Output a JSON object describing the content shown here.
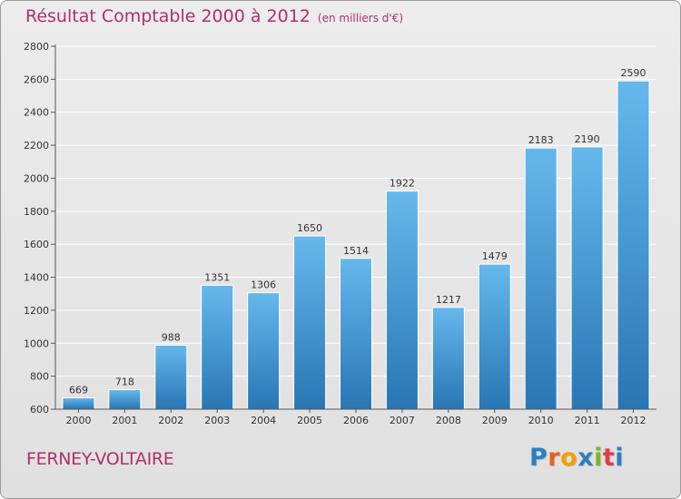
{
  "header": {
    "title": "Résultat Comptable 2000 à 2012",
    "subtitle": "(en milliers d'€)"
  },
  "footer": {
    "place": "FERNEY-VOLTAIRE",
    "brand_letters": [
      "P",
      "r",
      "o",
      "x",
      "i",
      "t",
      "i"
    ],
    "brand_colors": [
      "#2c7fc0",
      "#e8601c",
      "#f2a100",
      "#2c7fc0",
      "#79b72a",
      "#e23c4b",
      "#2c7fc0"
    ]
  },
  "colors": {
    "bar_top": "#66b8ec",
    "bar_bottom": "#2876b4",
    "title": "#b0306a",
    "grid": "#ffffff",
    "axis": "#555555"
  },
  "chart_data": {
    "type": "bar",
    "title": "Résultat Comptable 2000 à 2012",
    "ylabel": "(en milliers d'€)",
    "xlabel": "",
    "categories": [
      "2000",
      "2001",
      "2002",
      "2003",
      "2004",
      "2005",
      "2006",
      "2007",
      "2008",
      "2009",
      "2010",
      "2011",
      "2012"
    ],
    "values": [
      669,
      718,
      988,
      1351,
      1306,
      1650,
      1514,
      1922,
      1217,
      1479,
      2183,
      2190,
      2590
    ],
    "ylim": [
      600,
      2800
    ],
    "yticks": [
      600,
      800,
      1000,
      1200,
      1400,
      1600,
      1800,
      2000,
      2200,
      2400,
      2600,
      2800
    ],
    "grid": true
  }
}
